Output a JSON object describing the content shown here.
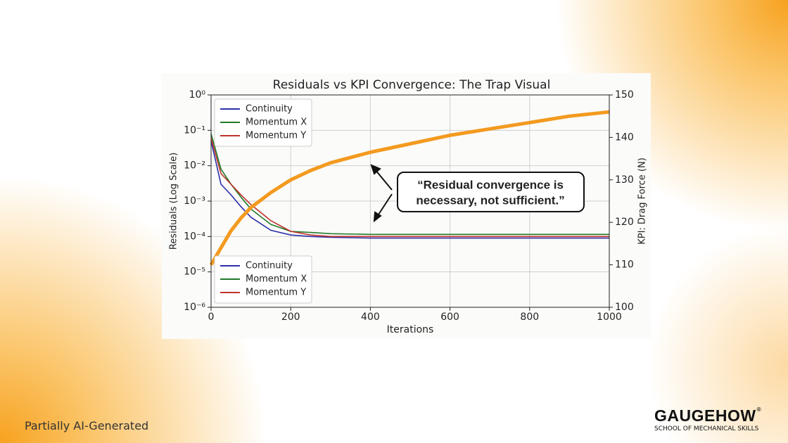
{
  "chart_data": {
    "type": "line",
    "title": "Residuals vs KPI Convergence: The Trap Visual",
    "xlabel": "Iterations",
    "ylabel": "Residuals (Log Scale)",
    "y2label": "KPI: Drag Force (N)",
    "x": [
      0,
      25,
      50,
      75,
      100,
      150,
      200,
      250,
      300,
      400,
      500,
      600,
      700,
      800,
      900,
      1000
    ],
    "series": [
      {
        "name": "Continuity",
        "color": "#2b2fa8",
        "values": [
          0.05,
          0.003,
          0.0015,
          0.0007,
          0.00035,
          0.00015,
          0.00011,
          0.0001,
          9.5e-05,
          9e-05,
          9e-05,
          9e-05,
          9e-05,
          9e-05,
          9e-05,
          9e-05
        ]
      },
      {
        "name": "Momentum X",
        "color": "#217a2a",
        "values": [
          0.08,
          0.008,
          0.003,
          0.0013,
          0.0006,
          0.00022,
          0.00014,
          0.00013,
          0.00012,
          0.000115,
          0.000115,
          0.000115,
          0.000115,
          0.000115,
          0.000115,
          0.000115
        ]
      },
      {
        "name": "Momentum Y",
        "color": "#c0322b",
        "values": [
          0.06,
          0.006,
          0.003,
          0.0015,
          0.0008,
          0.00028,
          0.00014,
          0.00011,
          0.0001,
          0.0001,
          0.0001,
          0.0001,
          0.0001,
          0.0001,
          0.0001,
          0.0001
        ]
      },
      {
        "axis": "y2",
        "color": "#f39a1f",
        "values": [
          110,
          114,
          118,
          121,
          123.5,
          127,
          130,
          132.2,
          134,
          136.5,
          138.5,
          140.5,
          142,
          143.5,
          145,
          146
        ]
      }
    ],
    "xlim": [
      0,
      1000
    ],
    "xticks": [
      0,
      200,
      400,
      600,
      800,
      1000
    ],
    "yscale": "log",
    "ylim": [
      1e-06,
      1
    ],
    "yticks": [
      {
        "value": 1e-06,
        "label": "10⁻⁶"
      },
      {
        "value": 1e-05,
        "label": "10⁻⁵"
      },
      {
        "value": 0.0001,
        "label": "10⁻⁴"
      },
      {
        "value": 0.001,
        "label": "10⁻³"
      },
      {
        "value": 0.01,
        "label": "10⁻²"
      },
      {
        "value": 0.1,
        "label": "10⁻¹"
      },
      {
        "value": 1,
        "label": "10⁰"
      }
    ],
    "y2lim": [
      100,
      150
    ],
    "y2ticks": [
      100,
      110,
      120,
      130,
      140,
      150
    ],
    "grid": true,
    "legend": [
      "upper left",
      "lower left"
    ],
    "annotation": [
      "“Residual convergence is",
      "necessary, not sufficient.”"
    ]
  },
  "footer": "Partially AI-Generated",
  "logo": {
    "name": "GAUGEHOW",
    "mark": "®",
    "tagline": "SCHOOL OF MECHANICAL SKILLS"
  }
}
